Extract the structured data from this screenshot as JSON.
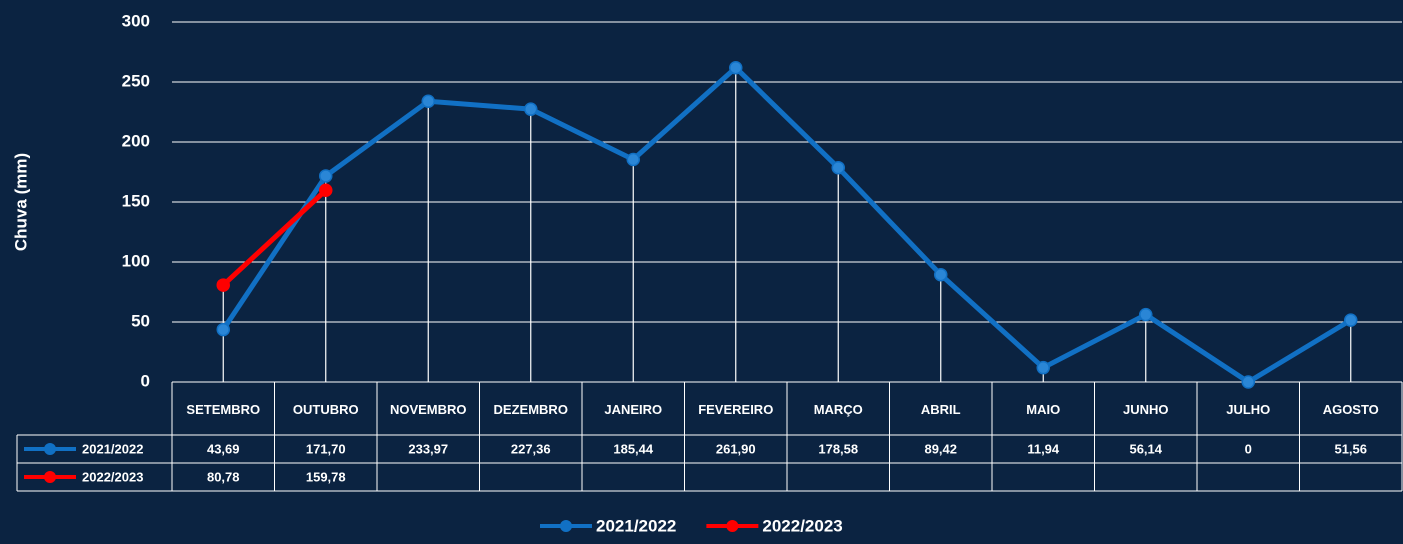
{
  "chart_data": {
    "type": "line",
    "y_label": "Chuva (mm)",
    "categories": [
      "SETEMBRO",
      "OUTUBRO",
      "NOVEMBRO",
      "DEZEMBRO",
      "JANEIRO",
      "FEVEREIRO",
      "MARÇO",
      "ABRIL",
      "MAIO",
      "JUNHO",
      "JULHO",
      "AGOSTO"
    ],
    "series": [
      {
        "name": "2021/2022",
        "color": "#1170c4",
        "values": [
          43.69,
          171.7,
          233.97,
          227.36,
          185.44,
          261.9,
          178.58,
          89.42,
          11.94,
          56.14,
          0,
          51.56
        ],
        "value_labels": [
          "43,69",
          "171,70",
          "233,97",
          "227,36",
          "185,44",
          "261,90",
          "178,58",
          "89,42",
          "11,94",
          "56,14",
          "0",
          "51,56"
        ]
      },
      {
        "name": "2022/2023",
        "color": "#ff0000",
        "values": [
          80.78,
          159.78,
          null,
          null,
          null,
          null,
          null,
          null,
          null,
          null,
          null,
          null
        ],
        "value_labels": [
          "80,78",
          "159,78",
          null,
          null,
          null,
          null,
          null,
          null,
          null,
          null,
          null,
          null
        ]
      }
    ],
    "ylim": [
      0,
      300
    ],
    "yticks": [
      0,
      50,
      100,
      150,
      200,
      250,
      300
    ],
    "grid": true,
    "legend": "bottom",
    "drop_lines": true
  }
}
